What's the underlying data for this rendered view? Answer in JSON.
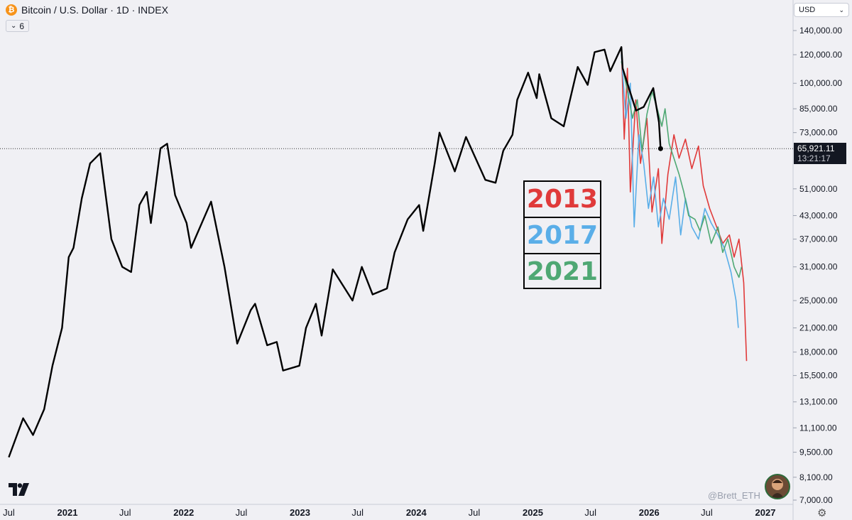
{
  "header": {
    "symbol_icon": "bitcoin-icon",
    "title": "Bitcoin / U.S. Dollar · 1D · INDEX",
    "indicator_count": "6"
  },
  "currency": {
    "label": "USD"
  },
  "price_tag": {
    "price": "65,921.11",
    "countdown": "13:21:17"
  },
  "legend": [
    {
      "label": "2013",
      "color": "#e03a3a"
    },
    {
      "label": "2017",
      "color": "#5aaee8"
    },
    {
      "label": "2021",
      "color": "#4fa874"
    }
  ],
  "watermark": "@Brett_ETH",
  "colors": {
    "price_line": "#000000",
    "background": "#f0f0f4"
  },
  "chart_data": {
    "type": "line",
    "y_scale": "log",
    "y_ticks": [
      7000,
      8100,
      9500,
      11100,
      13100,
      15500,
      18000,
      21000,
      25000,
      31000,
      37000,
      43000,
      51000,
      73000,
      85000,
      100000,
      120000,
      140000
    ],
    "y_tick_labels": [
      "7,000.00",
      "8,100.00",
      "9,500.00",
      "11,100.00",
      "13,100.00",
      "15,500.00",
      "18,000.00",
      "21,000.00",
      "25,000.00",
      "31,000.00",
      "37,000.00",
      "43,000.00",
      "51,000.00",
      "73,000.00",
      "85,000.00",
      "100,000.00",
      "120,000.00",
      "140,000.00"
    ],
    "x_ticks": [
      "2020-07-01",
      "2021-01-01",
      "2021-07-01",
      "2022-01-01",
      "2022-07-01",
      "2023-01-01",
      "2023-07-01",
      "2024-01-01",
      "2024-07-01",
      "2025-01-01",
      "2025-07-01",
      "2026-01-01",
      "2026-07-01",
      "2027-01-01"
    ],
    "x_tick_labels": [
      "Jul",
      "2021",
      "Jul",
      "2022",
      "Jul",
      "2023",
      "Jul",
      "2024",
      "Jul",
      "2025",
      "Jul",
      "2026",
      "Jul",
      "2027"
    ],
    "current_price": 65921.11,
    "series": [
      {
        "color": "#000000",
        "points": [
          [
            "2020-07-01",
            9200
          ],
          [
            "2020-08-15",
            11800
          ],
          [
            "2020-09-15",
            10600
          ],
          [
            "2020-10-20",
            12500
          ],
          [
            "2020-11-15",
            16500
          ],
          [
            "2020-12-15",
            21000
          ],
          [
            "2021-01-05",
            33000
          ],
          [
            "2021-01-20",
            35000
          ],
          [
            "2021-02-15",
            48000
          ],
          [
            "2021-03-13",
            60000
          ],
          [
            "2021-04-14",
            64000
          ],
          [
            "2021-05-19",
            37000
          ],
          [
            "2021-06-22",
            31000
          ],
          [
            "2021-07-20",
            30000
          ],
          [
            "2021-08-15",
            46000
          ],
          [
            "2021-09-07",
            50000
          ],
          [
            "2021-09-20",
            41000
          ],
          [
            "2021-10-20",
            66000
          ],
          [
            "2021-11-10",
            68000
          ],
          [
            "2021-12-05",
            49000
          ],
          [
            "2022-01-10",
            41000
          ],
          [
            "2022-01-24",
            35000
          ],
          [
            "2022-03-28",
            47000
          ],
          [
            "2022-05-09",
            31000
          ],
          [
            "2022-06-18",
            19000
          ],
          [
            "2022-07-30",
            23500
          ],
          [
            "2022-08-13",
            24500
          ],
          [
            "2022-09-20",
            18800
          ],
          [
            "2022-10-20",
            19200
          ],
          [
            "2022-11-09",
            16000
          ],
          [
            "2022-12-30",
            16500
          ],
          [
            "2023-01-20",
            21000
          ],
          [
            "2023-02-20",
            24500
          ],
          [
            "2023-03-10",
            20000
          ],
          [
            "2023-04-14",
            30500
          ],
          [
            "2023-06-15",
            25000
          ],
          [
            "2023-07-14",
            31000
          ],
          [
            "2023-08-17",
            26000
          ],
          [
            "2023-10-01",
            27000
          ],
          [
            "2023-10-25",
            34000
          ],
          [
            "2023-12-05",
            42000
          ],
          [
            "2024-01-10",
            46000
          ],
          [
            "2024-01-23",
            39000
          ],
          [
            "2024-02-28",
            60000
          ],
          [
            "2024-03-14",
            73000
          ],
          [
            "2024-05-01",
            57000
          ],
          [
            "2024-06-05",
            71000
          ],
          [
            "2024-08-05",
            54000
          ],
          [
            "2024-09-06",
            53000
          ],
          [
            "2024-09-30",
            65000
          ],
          [
            "2024-10-29",
            72000
          ],
          [
            "2024-11-13",
            90000
          ],
          [
            "2024-12-17",
            107000
          ],
          [
            "2025-01-13",
            91000
          ],
          [
            "2025-01-21",
            106000
          ],
          [
            "2025-02-28",
            80000
          ],
          [
            "2025-04-08",
            76000
          ],
          [
            "2025-05-22",
            111000
          ],
          [
            "2025-06-22",
            99000
          ],
          [
            "2025-07-14",
            122000
          ],
          [
            "2025-08-14",
            124000
          ],
          [
            "2025-09-01",
            108000
          ],
          [
            "2025-10-06",
            126000
          ],
          [
            "2025-10-10",
            110000
          ],
          [
            "2025-11-21",
            84000
          ],
          [
            "2025-12-15",
            86000
          ],
          [
            "2026-01-14",
            97000
          ],
          [
            "2026-02-01",
            78000
          ],
          [
            "2026-02-06",
            65921
          ]
        ]
      },
      {
        "name": "2013",
        "color": "#e03a3a",
        "points": [
          [
            "2025-10-06",
            126000
          ],
          [
            "2025-10-15",
            70000
          ],
          [
            "2025-10-25",
            110000
          ],
          [
            "2025-11-03",
            50000
          ],
          [
            "2025-11-20",
            90000
          ],
          [
            "2025-12-05",
            60000
          ],
          [
            "2025-12-25",
            80000
          ],
          [
            "2026-01-10",
            44000
          ],
          [
            "2026-01-30",
            58000
          ],
          [
            "2026-02-10",
            36000
          ],
          [
            "2026-03-01",
            56000
          ],
          [
            "2026-03-20",
            72000
          ],
          [
            "2026-04-05",
            62000
          ],
          [
            "2026-04-25",
            70000
          ],
          [
            "2026-05-15",
            58000
          ],
          [
            "2026-06-05",
            67000
          ],
          [
            "2026-06-20",
            52000
          ],
          [
            "2026-07-10",
            45000
          ],
          [
            "2026-08-01",
            40000
          ],
          [
            "2026-08-20",
            36000
          ],
          [
            "2026-09-10",
            38000
          ],
          [
            "2026-09-25",
            33000
          ],
          [
            "2026-10-10",
            37000
          ],
          [
            "2026-10-25",
            28000
          ],
          [
            "2026-11-03",
            17000
          ]
        ]
      },
      {
        "name": "2017",
        "color": "#5aaee8",
        "points": [
          [
            "2025-10-06",
            120000
          ],
          [
            "2025-10-20",
            80000
          ],
          [
            "2025-11-03",
            100000
          ],
          [
            "2025-11-15",
            40000
          ],
          [
            "2025-11-30",
            72000
          ],
          [
            "2025-12-15",
            60000
          ],
          [
            "2025-12-30",
            45000
          ],
          [
            "2026-01-15",
            55000
          ],
          [
            "2026-01-30",
            40000
          ],
          [
            "2026-02-15",
            48000
          ],
          [
            "2026-03-05",
            42000
          ],
          [
            "2026-03-25",
            55000
          ],
          [
            "2026-04-10",
            38000
          ],
          [
            "2026-04-25",
            48000
          ],
          [
            "2026-05-15",
            40000
          ],
          [
            "2026-06-05",
            37000
          ],
          [
            "2026-06-25",
            45000
          ],
          [
            "2026-07-15",
            41000
          ],
          [
            "2026-08-05",
            38000
          ],
          [
            "2026-08-25",
            35000
          ],
          [
            "2026-09-15",
            30000
          ],
          [
            "2026-10-01",
            25000
          ],
          [
            "2026-10-08",
            21000
          ]
        ]
      },
      {
        "name": "2021",
        "color": "#4fa874",
        "points": [
          [
            "2025-10-06",
            115000
          ],
          [
            "2025-10-20",
            100000
          ],
          [
            "2025-11-10",
            80000
          ],
          [
            "2025-11-25",
            90000
          ],
          [
            "2025-12-10",
            65000
          ],
          [
            "2025-12-25",
            82000
          ],
          [
            "2026-01-10",
            95000
          ],
          [
            "2026-01-25",
            86000
          ],
          [
            "2026-02-10",
            76000
          ],
          [
            "2026-02-20",
            85000
          ],
          [
            "2026-03-05",
            68000
          ],
          [
            "2026-03-20",
            62000
          ],
          [
            "2026-04-05",
            56000
          ],
          [
            "2026-04-20",
            50000
          ],
          [
            "2026-05-05",
            43000
          ],
          [
            "2026-05-25",
            42000
          ],
          [
            "2026-06-10",
            39000
          ],
          [
            "2026-06-25",
            43000
          ],
          [
            "2026-07-15",
            36000
          ],
          [
            "2026-08-05",
            40000
          ],
          [
            "2026-08-20",
            34000
          ],
          [
            "2026-09-05",
            37000
          ],
          [
            "2026-09-25",
            31000
          ],
          [
            "2026-10-10",
            29000
          ],
          [
            "2026-10-18",
            31000
          ]
        ]
      }
    ]
  }
}
